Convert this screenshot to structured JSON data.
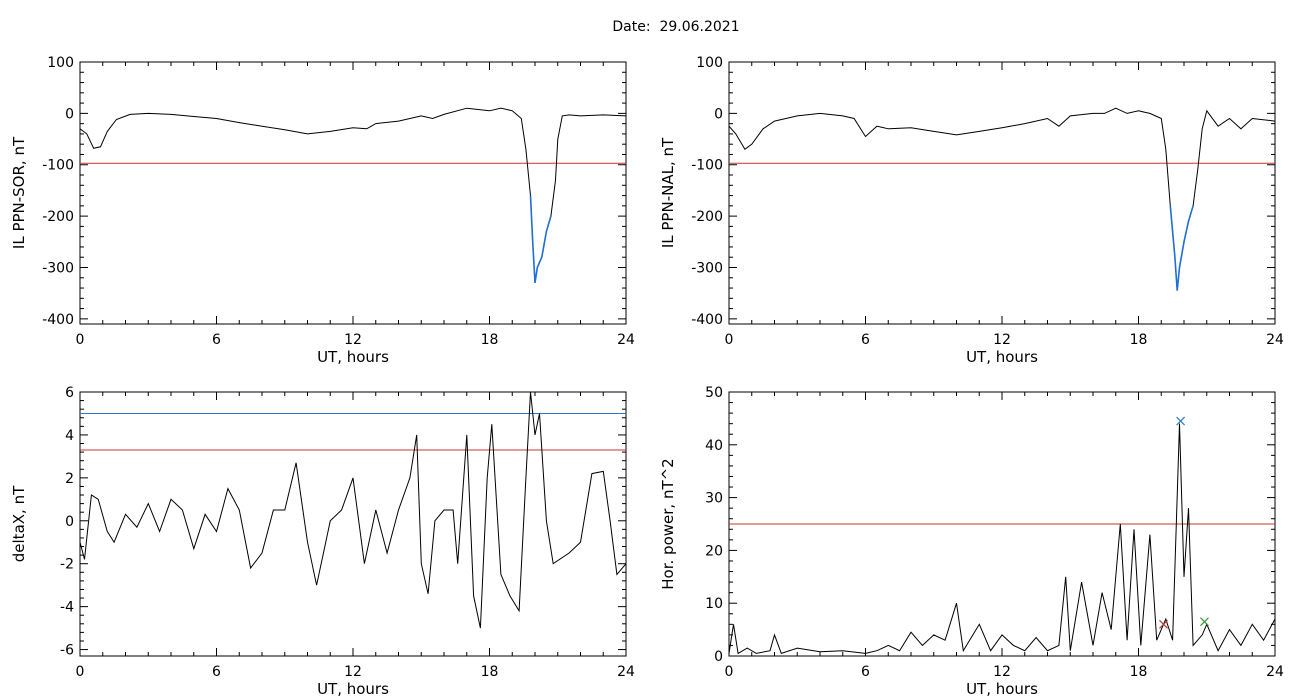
{
  "header": {
    "date_label": "Date:  29.06.2021"
  },
  "colors": {
    "trace": "#000000",
    "threshold_red": "#c0392b",
    "threshold_blue": "#2a77c9",
    "highlight_blue": "#1f6fd6",
    "marker_blue": "#2a77c9",
    "marker_red": "#b03a2e",
    "marker_green": "#3a9a3a"
  },
  "chart_data": [
    {
      "type": "line",
      "title": "",
      "xlabel": "UT, hours",
      "ylabel": "IL PPN-SOR, nT",
      "xlim": [
        0,
        24
      ],
      "ylim": [
        -410,
        100
      ],
      "xticks": [
        0,
        6,
        12,
        18,
        24
      ],
      "yticks": [
        100,
        0,
        -100,
        -200,
        -300,
        -400
      ],
      "threshold_lines": [
        {
          "y": -97,
          "color": "red"
        }
      ],
      "series": [
        {
          "points": [
            [
              0,
              -30
            ],
            [
              0.3,
              -40
            ],
            [
              0.6,
              -68
            ],
            [
              0.9,
              -65
            ],
            [
              1.2,
              -35
            ],
            [
              1.6,
              -12
            ],
            [
              2.2,
              -2
            ],
            [
              3.0,
              0
            ],
            [
              4.0,
              -2
            ],
            [
              5.0,
              -6
            ],
            [
              6.0,
              -10
            ],
            [
              7.0,
              -18
            ],
            [
              8.0,
              -25
            ],
            [
              9.0,
              -32
            ],
            [
              10.0,
              -40
            ],
            [
              11.0,
              -35
            ],
            [
              12.0,
              -28
            ],
            [
              12.6,
              -30
            ],
            [
              13.0,
              -20
            ],
            [
              14.0,
              -15
            ],
            [
              15.0,
              -5
            ],
            [
              15.5,
              -10
            ],
            [
              16.0,
              -2
            ],
            [
              17.0,
              10
            ],
            [
              18.0,
              5
            ],
            [
              18.5,
              10
            ],
            [
              19.0,
              5
            ],
            [
              19.4,
              -10
            ],
            [
              19.6,
              -70
            ],
            [
              19.8,
              -160
            ],
            [
              19.9,
              -250
            ],
            [
              20.0,
              -330
            ],
            [
              20.1,
              -300
            ],
            [
              20.3,
              -280
            ],
            [
              20.5,
              -230
            ],
            [
              20.7,
              -200
            ],
            [
              20.9,
              -130
            ],
            [
              21.0,
              -50
            ],
            [
              21.2,
              -5
            ],
            [
              21.5,
              -3
            ],
            [
              22.0,
              -5
            ],
            [
              23.0,
              -3
            ],
            [
              24,
              -5
            ]
          ]
        }
      ],
      "highlight": {
        "x_range": [
          19.8,
          20.8
        ],
        "color": "blue"
      }
    },
    {
      "type": "line",
      "title": "",
      "xlabel": "UT, hours",
      "ylabel": "IL PPN-NAL, nT",
      "xlim": [
        0,
        24
      ],
      "ylim": [
        -410,
        100
      ],
      "xticks": [
        0,
        6,
        12,
        18,
        24
      ],
      "yticks": [
        100,
        0,
        -100,
        -200,
        -300,
        -400
      ],
      "threshold_lines": [
        {
          "y": -97,
          "color": "red"
        }
      ],
      "series": [
        {
          "points": [
            [
              0,
              -25
            ],
            [
              0.3,
              -40
            ],
            [
              0.7,
              -70
            ],
            [
              1.0,
              -60
            ],
            [
              1.5,
              -30
            ],
            [
              2.0,
              -15
            ],
            [
              3.0,
              -5
            ],
            [
              4.0,
              0
            ],
            [
              5.0,
              -5
            ],
            [
              5.5,
              -10
            ],
            [
              6.0,
              -45
            ],
            [
              6.5,
              -25
            ],
            [
              7.0,
              -30
            ],
            [
              8.0,
              -28
            ],
            [
              9.0,
              -35
            ],
            [
              10.0,
              -42
            ],
            [
              11.0,
              -35
            ],
            [
              12.0,
              -28
            ],
            [
              13.0,
              -20
            ],
            [
              14.0,
              -10
            ],
            [
              14.5,
              -25
            ],
            [
              15.0,
              -5
            ],
            [
              16.0,
              0
            ],
            [
              16.5,
              0
            ],
            [
              17.0,
              10
            ],
            [
              17.5,
              0
            ],
            [
              18.0,
              5
            ],
            [
              18.5,
              0
            ],
            [
              19.0,
              -10
            ],
            [
              19.2,
              -70
            ],
            [
              19.4,
              -180
            ],
            [
              19.6,
              -280
            ],
            [
              19.7,
              -345
            ],
            [
              19.8,
              -300
            ],
            [
              20.0,
              -250
            ],
            [
              20.2,
              -210
            ],
            [
              20.4,
              -180
            ],
            [
              20.6,
              -110
            ],
            [
              20.8,
              -30
            ],
            [
              21.0,
              5
            ],
            [
              21.5,
              -25
            ],
            [
              22.0,
              -10
            ],
            [
              22.5,
              -30
            ],
            [
              23.0,
              -10
            ],
            [
              24,
              -15
            ]
          ]
        }
      ],
      "highlight": {
        "x_range": [
          19.3,
          20.5
        ],
        "color": "blue"
      }
    },
    {
      "type": "line",
      "title": "",
      "xlabel": "UT, hours",
      "ylabel": "deltaX, nT",
      "xlim": [
        0,
        24
      ],
      "ylim": [
        -6.3,
        6
      ],
      "xticks": [
        0,
        6,
        12,
        18,
        24
      ],
      "yticks": [
        6,
        4,
        2,
        0,
        -2,
        -4,
        -6
      ],
      "threshold_lines": [
        {
          "y": 5.0,
          "color": "blue"
        },
        {
          "y": 3.3,
          "color": "red"
        }
      ],
      "series": [
        {
          "points": [
            [
              0,
              -1.0
            ],
            [
              0.2,
              -1.8
            ],
            [
              0.5,
              1.2
            ],
            [
              0.8,
              1.0
            ],
            [
              1.2,
              -0.5
            ],
            [
              1.5,
              -1.0
            ],
            [
              2.0,
              0.3
            ],
            [
              2.5,
              -0.3
            ],
            [
              3.0,
              0.8
            ],
            [
              3.5,
              -0.5
            ],
            [
              4.0,
              1.0
            ],
            [
              4.5,
              0.5
            ],
            [
              5.0,
              -1.3
            ],
            [
              5.5,
              0.3
            ],
            [
              6.0,
              -0.5
            ],
            [
              6.5,
              1.5
            ],
            [
              7.0,
              0.5
            ],
            [
              7.5,
              -2.2
            ],
            [
              8.0,
              -1.5
            ],
            [
              8.5,
              0.5
            ],
            [
              9.0,
              0.5
            ],
            [
              9.5,
              2.7
            ],
            [
              10.0,
              -1.0
            ],
            [
              10.4,
              -3.0
            ],
            [
              11.0,
              0
            ],
            [
              11.5,
              0.5
            ],
            [
              12.0,
              2.0
            ],
            [
              12.5,
              -2.0
            ],
            [
              13.0,
              0.5
            ],
            [
              13.5,
              -1.5
            ],
            [
              14.0,
              0.5
            ],
            [
              14.5,
              2.0
            ],
            [
              14.8,
              4.0
            ],
            [
              15.0,
              -2.0
            ],
            [
              15.3,
              -3.4
            ],
            [
              15.6,
              0
            ],
            [
              16.0,
              0.5
            ],
            [
              16.4,
              0.5
            ],
            [
              16.6,
              -2.0
            ],
            [
              17.0,
              4.0
            ],
            [
              17.3,
              -3.5
            ],
            [
              17.6,
              -5.0
            ],
            [
              17.9,
              2.0
            ],
            [
              18.1,
              4.5
            ],
            [
              18.5,
              -2.5
            ],
            [
              18.9,
              -3.5
            ],
            [
              19.3,
              -4.2
            ],
            [
              19.6,
              2.0
            ],
            [
              19.8,
              6.0
            ],
            [
              20.0,
              4.0
            ],
            [
              20.2,
              5.0
            ],
            [
              20.5,
              0
            ],
            [
              20.8,
              -2.0
            ],
            [
              21.5,
              -1.5
            ],
            [
              22.0,
              -1.0
            ],
            [
              22.5,
              2.2
            ],
            [
              23.0,
              2.3
            ],
            [
              23.3,
              0
            ],
            [
              23.6,
              -2.5
            ],
            [
              24,
              -2.0
            ]
          ]
        }
      ],
      "highlight": null
    },
    {
      "type": "line",
      "title": "",
      "xlabel": "UT, hours",
      "ylabel": "Hor. power, nT^2",
      "xlim": [
        0,
        24
      ],
      "ylim": [
        0,
        50
      ],
      "xticks": [
        0,
        6,
        12,
        18,
        24
      ],
      "yticks": [
        50,
        40,
        30,
        20,
        10,
        0
      ],
      "threshold_lines": [
        {
          "y": 25,
          "color": "red"
        }
      ],
      "series": [
        {
          "points": [
            [
              0,
              0.5
            ],
            [
              0.2,
              6
            ],
            [
              0.4,
              0.5
            ],
            [
              0.8,
              1.5
            ],
            [
              1.2,
              0.5
            ],
            [
              1.8,
              1.0
            ],
            [
              2.0,
              4.0
            ],
            [
              2.3,
              0.5
            ],
            [
              3.0,
              1.5
            ],
            [
              4.0,
              0.8
            ],
            [
              5.0,
              1.0
            ],
            [
              6.0,
              0.5
            ],
            [
              6.5,
              1.0
            ],
            [
              7.0,
              2.0
            ],
            [
              7.5,
              1.0
            ],
            [
              8.0,
              4.5
            ],
            [
              8.5,
              2.0
            ],
            [
              9.0,
              4.0
            ],
            [
              9.5,
              3.0
            ],
            [
              10.0,
              10.0
            ],
            [
              10.3,
              1.0
            ],
            [
              11.0,
              6.0
            ],
            [
              11.5,
              1.0
            ],
            [
              12.0,
              4.0
            ],
            [
              12.5,
              2.0
            ],
            [
              13.0,
              1.0
            ],
            [
              13.5,
              3.5
            ],
            [
              14.0,
              1.0
            ],
            [
              14.5,
              2.0
            ],
            [
              14.8,
              15.0
            ],
            [
              15.0,
              1.0
            ],
            [
              15.5,
              14.0
            ],
            [
              16.0,
              2.0
            ],
            [
              16.4,
              12.0
            ],
            [
              16.8,
              5.0
            ],
            [
              17.2,
              25.0
            ],
            [
              17.5,
              3.0
            ],
            [
              17.8,
              24.0
            ],
            [
              18.1,
              2.0
            ],
            [
              18.5,
              23.0
            ],
            [
              18.8,
              3.0
            ],
            [
              19.2,
              7.0
            ],
            [
              19.5,
              3.0
            ],
            [
              19.8,
              44.0
            ],
            [
              20.0,
              15.0
            ],
            [
              20.2,
              28.0
            ],
            [
              20.4,
              2.0
            ],
            [
              20.8,
              4.0
            ],
            [
              21.0,
              6.0
            ],
            [
              21.5,
              1.0
            ],
            [
              22.0,
              5.0
            ],
            [
              22.5,
              2.0
            ],
            [
              23.0,
              6.0
            ],
            [
              23.5,
              3.0
            ],
            [
              24,
              7.0
            ]
          ]
        }
      ],
      "markers": [
        {
          "x": 19.85,
          "y": 44.5,
          "symbol": "x",
          "color": "blue"
        },
        {
          "x": 19.1,
          "y": 6.0,
          "symbol": "x",
          "color": "red"
        },
        {
          "x": 20.9,
          "y": 6.5,
          "symbol": "x",
          "color": "green"
        }
      ],
      "highlight": null
    }
  ]
}
